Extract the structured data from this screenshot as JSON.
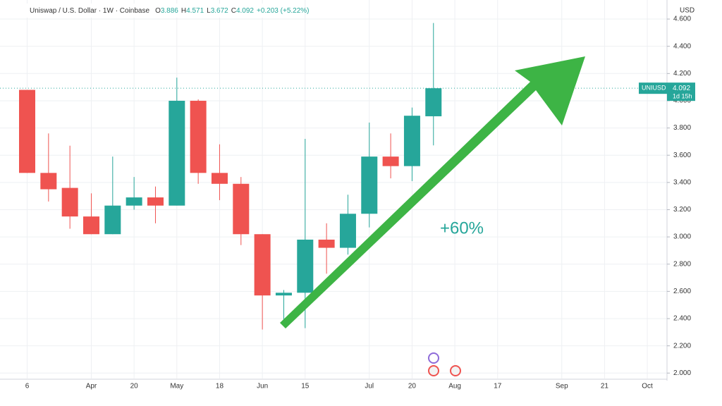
{
  "chart_data": {
    "type": "candlestick",
    "header": {
      "symbol": "Uniswap / U.S. Dollar · 1W · Coinbase",
      "ohlc": [
        {
          "key": "O",
          "value": "3.886"
        },
        {
          "key": "H",
          "value": "4.571"
        },
        {
          "key": "L",
          "value": "3.672"
        },
        {
          "key": "C",
          "value": "4.092"
        }
      ],
      "change": "+0.203 (+5.22%)"
    },
    "axis_unit": "USD",
    "categories": [
      "6",
      null,
      null,
      "Apr",
      null,
      "20",
      null,
      "May",
      null,
      "18",
      null,
      "Jun",
      null,
      "15",
      null,
      null,
      "Jul",
      null,
      "20",
      null,
      "Aug",
      null,
      "17",
      null,
      null,
      "Sep",
      null,
      "21",
      null,
      "Oct"
    ],
    "open": [
      4.08,
      3.47,
      3.36,
      3.15,
      3.02,
      3.23,
      3.29,
      3.23,
      4.0,
      3.47,
      3.39,
      3.02,
      2.57,
      2.59,
      2.98,
      2.92,
      3.17,
      3.59,
      3.52,
      3.886,
      null,
      null,
      null,
      null,
      null,
      null,
      null,
      null,
      null,
      null
    ],
    "high": [
      4.08,
      3.76,
      3.67,
      3.32,
      3.59,
      3.44,
      3.37,
      4.17,
      4.01,
      3.68,
      3.44,
      3.02,
      2.61,
      3.72,
      3.1,
      3.31,
      3.84,
      3.76,
      3.95,
      4.571,
      null,
      null,
      null,
      null,
      null,
      null,
      null,
      null,
      null,
      null
    ],
    "low": [
      3.47,
      3.26,
      3.06,
      3.02,
      3.02,
      3.2,
      3.1,
      3.23,
      3.39,
      3.27,
      2.94,
      2.32,
      2.37,
      2.33,
      2.73,
      2.87,
      3.07,
      3.43,
      3.41,
      3.672,
      null,
      null,
      null,
      null,
      null,
      null,
      null,
      null,
      null,
      null
    ],
    "close": [
      3.47,
      3.35,
      3.15,
      3.02,
      3.23,
      3.29,
      3.23,
      4.0,
      3.47,
      3.39,
      3.02,
      2.57,
      2.59,
      2.98,
      2.92,
      3.17,
      3.59,
      3.52,
      3.89,
      4.092,
      null,
      null,
      null,
      null,
      null,
      null,
      null,
      null,
      null,
      null
    ],
    "up_color": "#26a69a",
    "down_color": "#ef5350",
    "ylim": [
      1.96,
      4.74
    ],
    "yticks": [
      {
        "value": 2.0,
        "label": "2.000"
      },
      {
        "value": 2.2,
        "label": "2.200"
      },
      {
        "value": 2.4,
        "label": "2.400"
      },
      {
        "value": 2.6,
        "label": "2.600"
      },
      {
        "value": 2.8,
        "label": "2.800"
      },
      {
        "value": 3.0,
        "label": "3.000"
      },
      {
        "value": 3.2,
        "label": "3.200"
      },
      {
        "value": 3.4,
        "label": "3.400"
      },
      {
        "value": 3.6,
        "label": "3.600"
      },
      {
        "value": 3.8,
        "label": "3.800"
      },
      {
        "value": 4.0,
        "label": "4.000"
      },
      {
        "value": 4.2,
        "label": "4.200"
      },
      {
        "value": 4.4,
        "label": "4.400"
      },
      {
        "value": 4.6,
        "label": "4.600"
      }
    ],
    "grid": true,
    "price_label": {
      "symbol": "UNIUSD",
      "value": "4.092",
      "countdown": "1d 15h"
    },
    "annotation": "+60%"
  }
}
